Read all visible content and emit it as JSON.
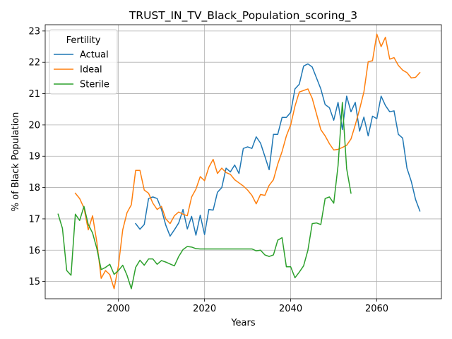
{
  "chart_data": {
    "type": "line",
    "title": "TRUST_IN_TV_Black_Population_scoring_3",
    "xlabel": "Years",
    "ylabel": "% of Black Population",
    "xlim": [
      1983,
      2075
    ],
    "ylim": [
      14.45,
      23.2
    ],
    "xticks": [
      2000,
      2020,
      2040,
      2060
    ],
    "yticks": [
      15,
      16,
      17,
      18,
      19,
      20,
      21,
      22,
      23
    ],
    "grid": true,
    "legend": {
      "title": "Fertility",
      "position": "upper-left"
    },
    "series": [
      {
        "name": "Actual",
        "color": "#1f77b4",
        "points": [
          [
            2004,
            16.85
          ],
          [
            2005,
            16.67
          ],
          [
            2006,
            16.82
          ],
          [
            2007,
            17.65
          ],
          [
            2008,
            17.7
          ],
          [
            2009,
            17.65
          ],
          [
            2010,
            17.3
          ],
          [
            2011,
            16.8
          ],
          [
            2012,
            16.45
          ],
          [
            2013,
            16.65
          ],
          [
            2014,
            16.87
          ],
          [
            2015,
            17.3
          ],
          [
            2016,
            16.68
          ],
          [
            2017,
            17.08
          ],
          [
            2018,
            16.48
          ],
          [
            2019,
            17.12
          ],
          [
            2020,
            16.5
          ],
          [
            2021,
            17.3
          ],
          [
            2022,
            17.28
          ],
          [
            2023,
            17.85
          ],
          [
            2024,
            18.0
          ],
          [
            2025,
            18.62
          ],
          [
            2026,
            18.5
          ],
          [
            2027,
            18.72
          ],
          [
            2028,
            18.45
          ],
          [
            2029,
            19.25
          ],
          [
            2030,
            19.3
          ],
          [
            2031,
            19.25
          ],
          [
            2032,
            19.62
          ],
          [
            2033,
            19.42
          ],
          [
            2034,
            19.0
          ],
          [
            2035,
            18.57
          ],
          [
            2036,
            19.7
          ],
          [
            2037,
            19.7
          ],
          [
            2038,
            20.24
          ],
          [
            2039,
            20.24
          ],
          [
            2040,
            20.4
          ],
          [
            2041,
            21.15
          ],
          [
            2042,
            21.3
          ],
          [
            2043,
            21.88
          ],
          [
            2044,
            21.95
          ],
          [
            2045,
            21.85
          ],
          [
            2046,
            21.5
          ],
          [
            2047,
            21.15
          ],
          [
            2048,
            20.65
          ],
          [
            2049,
            20.55
          ],
          [
            2050,
            20.15
          ],
          [
            2051,
            20.72
          ],
          [
            2052,
            19.85
          ],
          [
            2053,
            20.92
          ],
          [
            2054,
            20.42
          ],
          [
            2055,
            20.72
          ],
          [
            2056,
            19.8
          ],
          [
            2057,
            20.25
          ],
          [
            2058,
            19.65
          ],
          [
            2059,
            20.28
          ],
          [
            2060,
            20.2
          ],
          [
            2061,
            20.92
          ],
          [
            2062,
            20.62
          ],
          [
            2063,
            20.42
          ],
          [
            2064,
            20.45
          ],
          [
            2065,
            19.7
          ],
          [
            2066,
            19.58
          ],
          [
            2067,
            18.62
          ],
          [
            2068,
            18.2
          ],
          [
            2069,
            17.62
          ],
          [
            2070,
            17.25
          ]
        ]
      },
      {
        "name": "Ideal",
        "color": "#ff7f0e",
        "points": [
          [
            1990,
            17.82
          ],
          [
            1991,
            17.65
          ],
          [
            1992,
            17.35
          ],
          [
            1993,
            16.65
          ],
          [
            1994,
            17.1
          ],
          [
            1995,
            16.25
          ],
          [
            1996,
            15.1
          ],
          [
            1997,
            15.35
          ],
          [
            1998,
            15.22
          ],
          [
            1999,
            14.77
          ],
          [
            2000,
            15.5
          ],
          [
            2001,
            16.65
          ],
          [
            2002,
            17.2
          ],
          [
            2003,
            17.45
          ],
          [
            2004,
            18.55
          ],
          [
            2005,
            18.55
          ],
          [
            2006,
            17.92
          ],
          [
            2007,
            17.82
          ],
          [
            2008,
            17.5
          ],
          [
            2009,
            17.3
          ],
          [
            2010,
            17.4
          ],
          [
            2011,
            17.0
          ],
          [
            2012,
            16.85
          ],
          [
            2013,
            17.1
          ],
          [
            2014,
            17.22
          ],
          [
            2015,
            17.15
          ],
          [
            2016,
            17.1
          ],
          [
            2017,
            17.7
          ],
          [
            2018,
            17.95
          ],
          [
            2019,
            18.35
          ],
          [
            2020,
            18.22
          ],
          [
            2021,
            18.65
          ],
          [
            2022,
            18.9
          ],
          [
            2023,
            18.45
          ],
          [
            2024,
            18.62
          ],
          [
            2025,
            18.48
          ],
          [
            2026,
            18.42
          ],
          [
            2027,
            18.25
          ],
          [
            2028,
            18.15
          ],
          [
            2029,
            18.05
          ],
          [
            2030,
            17.92
          ],
          [
            2031,
            17.75
          ],
          [
            2032,
            17.48
          ],
          [
            2033,
            17.78
          ],
          [
            2034,
            17.75
          ],
          [
            2035,
            18.07
          ],
          [
            2036,
            18.25
          ],
          [
            2037,
            18.75
          ],
          [
            2038,
            19.15
          ],
          [
            2039,
            19.65
          ],
          [
            2040,
            20.0
          ],
          [
            2041,
            20.6
          ],
          [
            2042,
            21.05
          ],
          [
            2043,
            21.1
          ],
          [
            2044,
            21.15
          ],
          [
            2045,
            20.85
          ],
          [
            2046,
            20.35
          ],
          [
            2047,
            19.85
          ],
          [
            2048,
            19.65
          ],
          [
            2049,
            19.4
          ],
          [
            2050,
            19.2
          ],
          [
            2051,
            19.22
          ],
          [
            2052,
            19.28
          ],
          [
            2053,
            19.35
          ],
          [
            2054,
            19.55
          ],
          [
            2055,
            20.0
          ],
          [
            2056,
            20.5
          ],
          [
            2057,
            21.05
          ],
          [
            2058,
            22.02
          ],
          [
            2059,
            22.05
          ],
          [
            2060,
            22.9
          ],
          [
            2061,
            22.5
          ],
          [
            2062,
            22.8
          ],
          [
            2063,
            22.1
          ],
          [
            2064,
            22.15
          ],
          [
            2065,
            21.9
          ],
          [
            2066,
            21.75
          ],
          [
            2067,
            21.67
          ],
          [
            2068,
            21.5
          ],
          [
            2069,
            21.52
          ],
          [
            2070,
            21.67
          ]
        ]
      },
      {
        "name": "Sterile",
        "color": "#2ca02c",
        "points": [
          [
            1986,
            17.15
          ],
          [
            1987,
            16.7
          ],
          [
            1988,
            15.35
          ],
          [
            1989,
            15.2
          ],
          [
            1990,
            17.15
          ],
          [
            1991,
            16.95
          ],
          [
            1992,
            17.4
          ],
          [
            1993,
            16.82
          ],
          [
            1994,
            16.55
          ],
          [
            1995,
            16.05
          ],
          [
            1996,
            15.38
          ],
          [
            1997,
            15.45
          ],
          [
            1998,
            15.55
          ],
          [
            1999,
            15.23
          ],
          [
            2000,
            15.35
          ],
          [
            2001,
            15.52
          ],
          [
            2002,
            15.2
          ],
          [
            2003,
            14.77
          ],
          [
            2004,
            15.45
          ],
          [
            2005,
            15.68
          ],
          [
            2006,
            15.52
          ],
          [
            2007,
            15.72
          ],
          [
            2008,
            15.72
          ],
          [
            2009,
            15.55
          ],
          [
            2010,
            15.67
          ],
          [
            2011,
            15.62
          ],
          [
            2012,
            15.56
          ],
          [
            2013,
            15.5
          ],
          [
            2014,
            15.8
          ],
          [
            2015,
            16.02
          ],
          [
            2016,
            16.12
          ],
          [
            2017,
            16.1
          ],
          [
            2018,
            16.05
          ],
          [
            2019,
            16.04
          ],
          [
            2020,
            16.04
          ],
          [
            2021,
            16.04
          ],
          [
            2022,
            16.04
          ],
          [
            2023,
            16.04
          ],
          [
            2024,
            16.04
          ],
          [
            2025,
            16.04
          ],
          [
            2026,
            16.04
          ],
          [
            2027,
            16.04
          ],
          [
            2028,
            16.04
          ],
          [
            2029,
            16.04
          ],
          [
            2030,
            16.04
          ],
          [
            2031,
            16.04
          ],
          [
            2032,
            15.98
          ],
          [
            2033,
            16.0
          ],
          [
            2034,
            15.85
          ],
          [
            2035,
            15.8
          ],
          [
            2036,
            15.85
          ],
          [
            2037,
            16.32
          ],
          [
            2038,
            16.4
          ],
          [
            2039,
            15.47
          ],
          [
            2040,
            15.47
          ],
          [
            2041,
            15.12
          ],
          [
            2042,
            15.3
          ],
          [
            2043,
            15.5
          ],
          [
            2044,
            16.0
          ],
          [
            2045,
            16.85
          ],
          [
            2046,
            16.87
          ],
          [
            2047,
            16.82
          ],
          [
            2048,
            17.65
          ],
          [
            2049,
            17.7
          ],
          [
            2050,
            17.5
          ],
          [
            2051,
            18.7
          ],
          [
            2052,
            20.72
          ],
          [
            2053,
            18.6
          ],
          [
            2054,
            17.82
          ]
        ]
      }
    ]
  }
}
